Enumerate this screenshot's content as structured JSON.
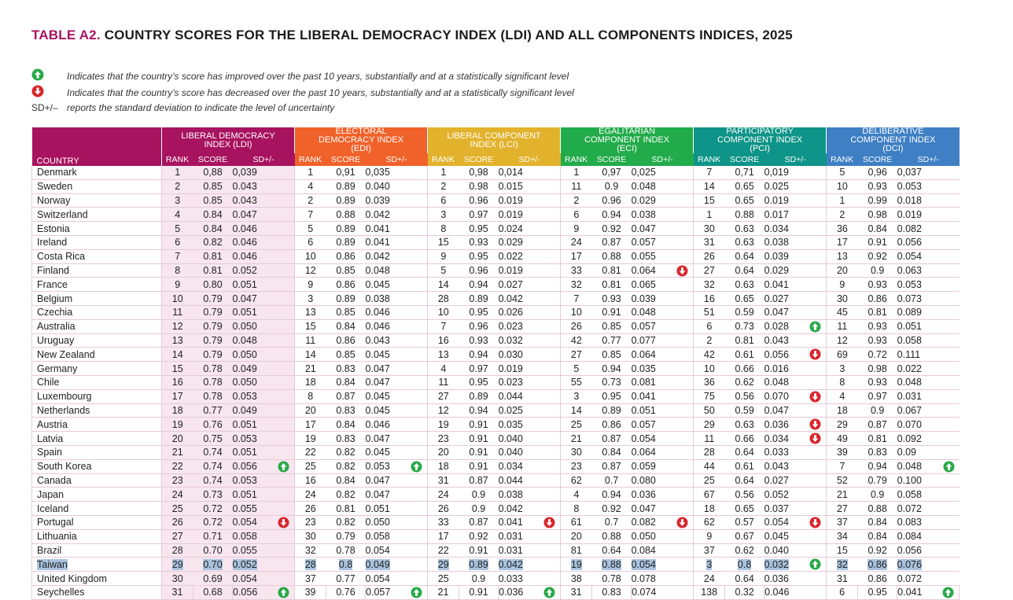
{
  "header": {
    "title_prefix": "TABLE A2.",
    "title": "COUNTRY SCORES FOR THE LIBERAL DEMOCRACY INDEX (LDI) AND ALL COMPONENTS INDICES, 2025"
  },
  "legend": [
    {
      "symbol": null,
      "text": "Indicates that the country’s score has improved over the past 10 years, substantially and at a statistically significant level"
    },
    {
      "symbol": null,
      "text": "Indicates that the country’s score has decreased over the past 10 years, substantially and at a statistically significant level"
    },
    {
      "symbol": "SD+/–",
      "text": "reports the standard deviation to indicate the level of uncertainty"
    }
  ],
  "table": {
    "country_label": "COUNTRY",
    "indices": [
      {
        "name": "LIBERAL DEMOCRACY INDEX (LDI)",
        "columns": [
          "RANK",
          "SCORE",
          "SD+/-"
        ]
      },
      {
        "name": "ELECTORAL DEMOCRACY INDEX (EDI)",
        "columns": [
          "RANK",
          "SCORE",
          "SD+/-"
        ]
      },
      {
        "name": "LIBERAL COMPONENT INDEX (LCI)",
        "columns": [
          "RANK",
          "SCORE",
          "SD+/-"
        ]
      },
      {
        "name": "EGALITARIAN COMPONENT INDEX (ECI)",
        "columns": [
          "RANK",
          "SCORE",
          "SD+/-"
        ]
      },
      {
        "name": "PARTICIPATORY COMPONENT INDEX (PCI)",
        "columns": [
          "RANK",
          "SCORE",
          "SD+/-"
        ]
      },
      {
        "name": "DELIBERATIVE COMPONENT INDEX (DCI)",
        "columns": [
          "RANK",
          "SCORE",
          "SD+/-"
        ]
      }
    ],
    "rows": [
      [
        "Denmark",
        "1",
        "0,88",
        "0,039",
        "1",
        "0,91",
        "0,035",
        "1",
        "0,98",
        "0,014",
        "1",
        "0,97",
        "0,025",
        "7",
        "0,71",
        "0,019",
        "5",
        "0,96",
        "0,037"
      ],
      [
        "Sweden",
        "2",
        "0.85",
        "0.043",
        "4",
        "0.89",
        "0.040",
        "2",
        "0.98",
        "0.015",
        "11",
        "0.9",
        "0.048",
        "14",
        "0.65",
        "0.025",
        "10",
        "0.93",
        "0.053"
      ],
      [
        "Norway",
        "3",
        "0.85",
        "0.043",
        "2",
        "0.89",
        "0.039",
        "6",
        "0.96",
        "0.019",
        "2",
        "0.96",
        "0.029",
        "15",
        "0.65",
        "0.019",
        "1",
        "0.99",
        "0.018"
      ],
      [
        "Switzerland",
        "4",
        "0.84",
        "0.047",
        "7",
        "0.88",
        "0.042",
        "3",
        "0.97",
        "0.019",
        "6",
        "0.94",
        "0.038",
        "1",
        "0.88",
        "0.017",
        "2",
        "0.98",
        "0.019"
      ],
      [
        "Estonia",
        "5",
        "0.84",
        "0.046",
        "5",
        "0.89",
        "0.041",
        "8",
        "0.95",
        "0.024",
        "9",
        "0.92",
        "0.047",
        "30",
        "0.63",
        "0.034",
        "36",
        "0.84",
        "0.082"
      ],
      [
        "Ireland",
        "6",
        "0.82",
        "0.046",
        "6",
        "0.89",
        "0.041",
        "15",
        "0.93",
        "0.029",
        "24",
        "0.87",
        "0.057",
        "31",
        "0.63",
        "0.038",
        "17",
        "0.91",
        "0.056"
      ],
      [
        "Costa Rica",
        "7",
        "0.81",
        "0.046",
        "10",
        "0.86",
        "0.042",
        "9",
        "0.95",
        "0.022",
        "17",
        "0.88",
        "0.055",
        "26",
        "0.64",
        "0.039",
        "13",
        "0.92",
        "0.054"
      ],
      [
        "Finland",
        "8",
        "0.81",
        "0.052",
        "12",
        "0.85",
        "0.048",
        "5",
        "0.96",
        "0.019",
        "33",
        "0.81",
        "0.064",
        "27",
        "0.64",
        "0.029",
        "20",
        "0.9",
        "0.063"
      ],
      [
        "France",
        "9",
        "0.80",
        "0.051",
        "9",
        "0.86",
        "0.045",
        "14",
        "0.94",
        "0.027",
        "32",
        "0.81",
        "0.065",
        "32",
        "0.63",
        "0.041",
        "9",
        "0.93",
        "0.053"
      ],
      [
        "Belgium",
        "10",
        "0.79",
        "0.047",
        "3",
        "0.89",
        "0.038",
        "28",
        "0.89",
        "0.042",
        "7",
        "0.93",
        "0.039",
        "16",
        "0.65",
        "0.027",
        "30",
        "0.86",
        "0.073"
      ],
      [
        "Czechia",
        "11",
        "0.79",
        "0.051",
        "13",
        "0.85",
        "0.046",
        "10",
        "0.95",
        "0.026",
        "10",
        "0.91",
        "0.048",
        "51",
        "0.59",
        "0.047",
        "45",
        "0.81",
        "0.089"
      ],
      [
        "Australia",
        "12",
        "0.79",
        "0.050",
        "15",
        "0.84",
        "0.046",
        "7",
        "0.96",
        "0.023",
        "26",
        "0.85",
        "0.057",
        "6",
        "0.73",
        "0.028",
        "11",
        "0.93",
        "0.051"
      ],
      [
        "Uruguay",
        "13",
        "0.79",
        "0.048",
        "11",
        "0.86",
        "0.043",
        "16",
        "0.93",
        "0.032",
        "42",
        "0.77",
        "0.077",
        "2",
        "0.81",
        "0.043",
        "12",
        "0.93",
        "0.058"
      ],
      [
        "New Zealand",
        "14",
        "0.79",
        "0.050",
        "14",
        "0.85",
        "0.045",
        "13",
        "0.94",
        "0.030",
        "27",
        "0.85",
        "0.064",
        "42",
        "0.61",
        "0.056",
        "69",
        "0.72",
        "0.111"
      ],
      [
        "Germany",
        "15",
        "0.78",
        "0.049",
        "21",
        "0.83",
        "0.047",
        "4",
        "0.97",
        "0.019",
        "5",
        "0.94",
        "0.035",
        "10",
        "0.66",
        "0.016",
        "3",
        "0.98",
        "0.022"
      ],
      [
        "Chile",
        "16",
        "0.78",
        "0.050",
        "18",
        "0.84",
        "0.047",
        "11",
        "0.95",
        "0.023",
        "55",
        "0.73",
        "0.081",
        "36",
        "0.62",
        "0.048",
        "8",
        "0.93",
        "0.048"
      ],
      [
        "Luxembourg",
        "17",
        "0.78",
        "0.053",
        "8",
        "0.87",
        "0.045",
        "27",
        "0.89",
        "0.044",
        "3",
        "0.95",
        "0.041",
        "75",
        "0.56",
        "0.070",
        "4",
        "0.97",
        "0.031"
      ],
      [
        "Netherlands",
        "18",
        "0.77",
        "0.049",
        "20",
        "0.83",
        "0.045",
        "12",
        "0.94",
        "0.025",
        "14",
        "0.89",
        "0.051",
        "50",
        "0.59",
        "0.047",
        "18",
        "0.9",
        "0.067"
      ],
      [
        "Austria",
        "19",
        "0.76",
        "0.051",
        "17",
        "0.84",
        "0.046",
        "19",
        "0.91",
        "0.035",
        "25",
        "0.86",
        "0.057",
        "29",
        "0.63",
        "0.036",
        "29",
        "0.87",
        "0.070"
      ],
      [
        "Latvia",
        "20",
        "0.75",
        "0.053",
        "19",
        "0.83",
        "0.047",
        "23",
        "0.91",
        "0.040",
        "21",
        "0.87",
        "0.054",
        "11",
        "0.66",
        "0.034",
        "49",
        "0.81",
        "0.092"
      ],
      [
        "Spain",
        "21",
        "0.74",
        "0.051",
        "22",
        "0.82",
        "0.045",
        "20",
        "0.91",
        "0.040",
        "30",
        "0.84",
        "0.064",
        "28",
        "0.64",
        "0.033",
        "39",
        "0.83",
        "0.09"
      ],
      [
        "South Korea",
        "22",
        "0.74",
        "0.056",
        "25",
        "0.82",
        "0.053",
        "18",
        "0.91",
        "0.034",
        "23",
        "0.87",
        "0.059",
        "44",
        "0.61",
        "0.043",
        "7",
        "0.94",
        "0.048"
      ],
      [
        "Canada",
        "23",
        "0.74",
        "0.053",
        "16",
        "0.84",
        "0.047",
        "31",
        "0.87",
        "0.044",
        "62",
        "0.7",
        "0.080",
        "25",
        "0.64",
        "0.027",
        "52",
        "0.79",
        "0.100"
      ],
      [
        "Japan",
        "24",
        "0.73",
        "0.051",
        "24",
        "0.82",
        "0.047",
        "24",
        "0.9",
        "0.038",
        "4",
        "0.94",
        "0.036",
        "67",
        "0.56",
        "0.052",
        "21",
        "0.9",
        "0.058"
      ],
      [
        "Iceland",
        "25",
        "0.72",
        "0.055",
        "26",
        "0.81",
        "0.051",
        "26",
        "0.9",
        "0.042",
        "8",
        "0.92",
        "0.047",
        "18",
        "0.65",
        "0.037",
        "27",
        "0.88",
        "0.072"
      ],
      [
        "Portugal",
        "26",
        "0.72",
        "0.054",
        "23",
        "0.82",
        "0.050",
        "33",
        "0.87",
        "0.041",
        "61",
        "0.7",
        "0.082",
        "62",
        "0.57",
        "0.054",
        "37",
        "0.84",
        "0.083"
      ],
      [
        "Lithuania",
        "27",
        "0.71",
        "0.058",
        "30",
        "0.79",
        "0.058",
        "17",
        "0.92",
        "0.031",
        "20",
        "0.88",
        "0.050",
        "9",
        "0.67",
        "0.045",
        "34",
        "0.84",
        "0.084"
      ],
      [
        "Brazil",
        "28",
        "0.70",
        "0.055",
        "32",
        "0.78",
        "0.054",
        "22",
        "0.91",
        "0.031",
        "81",
        "0.64",
        "0.084",
        "37",
        "0.62",
        "0.040",
        "15",
        "0.92",
        "0.056"
      ],
      [
        "Taiwan",
        "29",
        "0.70",
        "0.052",
        "28",
        "0.8",
        "0.049",
        "29",
        "0.89",
        "0.042",
        "19",
        "0.88",
        "0.054",
        "3",
        "0.8",
        "0.032",
        "32",
        "0.86",
        "0.076"
      ],
      [
        "United Kingdom",
        "30",
        "0.69",
        "0.054",
        "37",
        "0.77",
        "0.054",
        "25",
        "0.9",
        "0.033",
        "38",
        "0.78",
        "0.078",
        "24",
        "0.64",
        "0.036",
        "31",
        "0.86",
        "0.072"
      ],
      [
        "Seychelles",
        "31",
        "0.68",
        "0.056",
        "39",
        "0.76",
        "0.057",
        "21",
        "0.91",
        "0.036",
        "31",
        "0.83",
        "0.074",
        "138",
        "0.32",
        "0.046",
        "6",
        "0.95",
        "0.041"
      ]
    ]
  }
}
